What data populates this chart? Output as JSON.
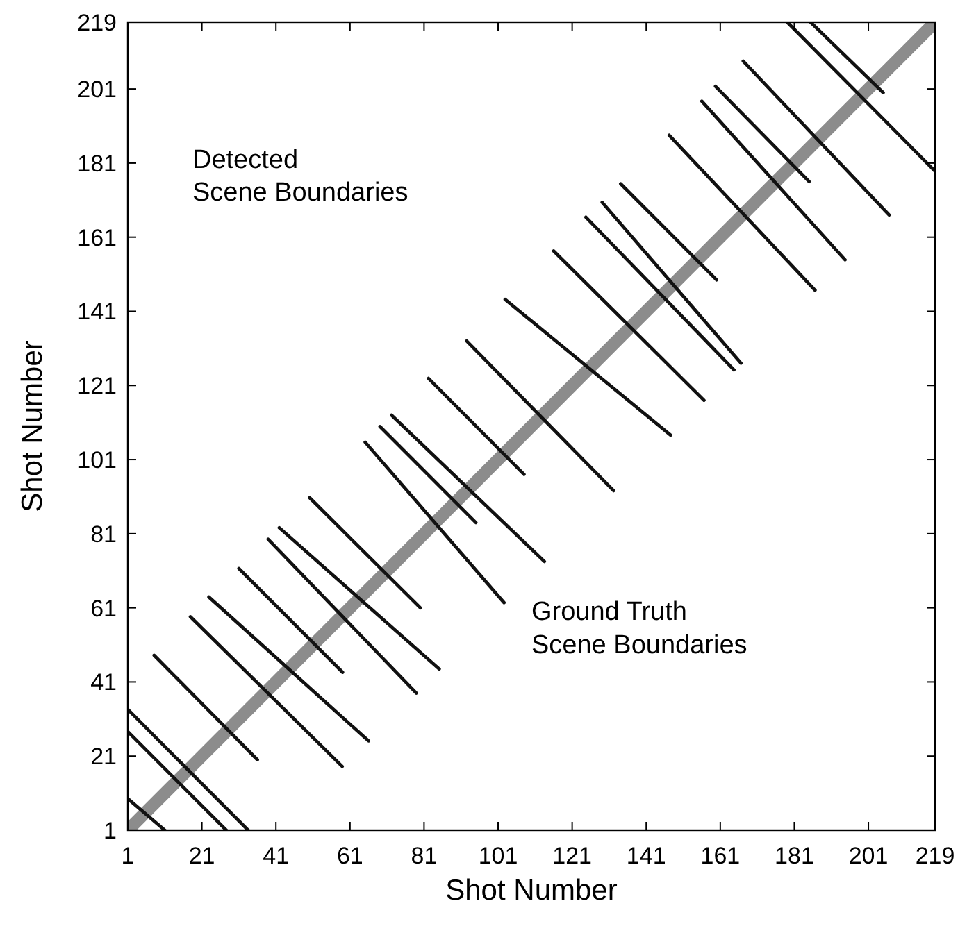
{
  "chart_data": {
    "type": "line",
    "xlabel": "Shot Number",
    "ylabel": "Shot Number",
    "xlim": [
      1,
      219
    ],
    "ylim": [
      1,
      219
    ],
    "xticks": [
      1,
      21,
      41,
      61,
      81,
      101,
      121,
      141,
      161,
      181,
      201,
      219
    ],
    "yticks": [
      1,
      21,
      41,
      61,
      81,
      101,
      121,
      141,
      161,
      181,
      201,
      219
    ],
    "marker": "none",
    "line_style": "solid",
    "annotations": [
      "Detected\nScene Boundaries",
      "Ground Truth\nScene Boundaries"
    ],
    "series": [
      {
        "color": "#8c8c8c",
        "x": [
          1,
          219
        ],
        "values": [
          1,
          219
        ]
      },
      {
        "color": "#111111",
        "x": [
          1,
          11,
          null,
          1,
          27.6,
          null,
          1,
          33.5,
          null,
          8.1,
          36,
          null,
          17.9,
          58.9,
          null,
          22.9,
          66,
          null,
          31,
          59,
          null,
          38.9,
          78.9,
          null,
          41.9,
          85.1,
          null,
          50.1,
          80,
          null,
          65.1,
          102.6,
          null,
          69.1,
          95,
          null,
          72.2,
          113.5,
          null,
          82.2,
          108,
          null,
          92.5,
          132.2,
          null,
          102.9,
          147.6,
          null,
          116,
          156.6,
          null,
          124.7,
          164.7,
          null,
          129.1,
          166.6,
          null,
          134.1,
          160,
          null,
          147.2,
          186.6,
          null,
          156,
          194.7,
          null,
          159.7,
          185,
          null,
          167.2,
          206.6,
          null,
          179.1,
          218.9,
          null,
          185.4,
          205
        ],
        "values": [
          9.5,
          1,
          null,
          27.6,
          1,
          null,
          33.6,
          1,
          null,
          48.2,
          20,
          null,
          58.6,
          18.2,
          null,
          63.9,
          25.1,
          null,
          71.6,
          43.6,
          null,
          79.5,
          38,
          null,
          82.6,
          44.5,
          null,
          90.7,
          61,
          null,
          105.7,
          62.4,
          null,
          109.9,
          84,
          null,
          113,
          73.5,
          null,
          122.9,
          97,
          null,
          133,
          92.6,
          null,
          144.2,
          107.6,
          null,
          157.3,
          117,
          null,
          166.4,
          125.2,
          null,
          170.4,
          127,
          null,
          175.4,
          149.5,
          null,
          188.5,
          146.7,
          null,
          197.7,
          154.9,
          null,
          201.7,
          176,
          null,
          208.5,
          167,
          null,
          219,
          178.9,
          null,
          219,
          200
        ]
      }
    ]
  }
}
